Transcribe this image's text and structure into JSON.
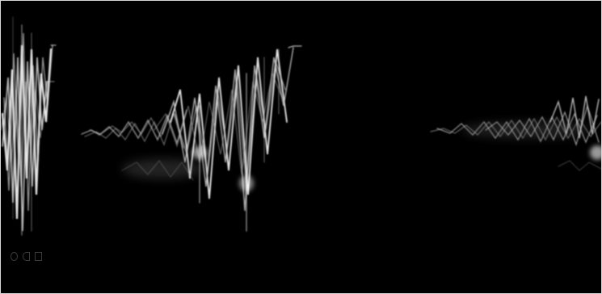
{
  "scene": {
    "background": "#000000",
    "stroke_color": "#e8e8e8",
    "glow_color": "#ffffff",
    "border_color": "#d8d8d8",
    "glyph_color": "#3a3a3a"
  }
}
